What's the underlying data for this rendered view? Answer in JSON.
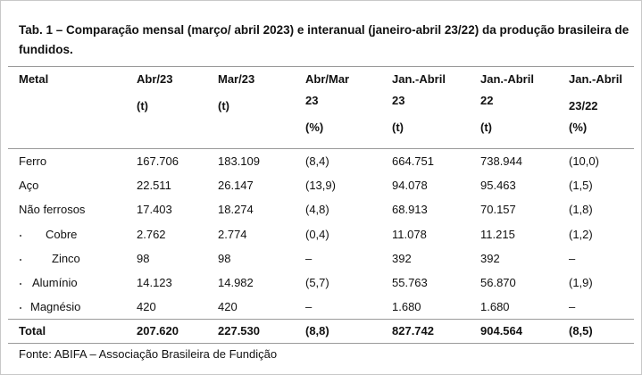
{
  "title": "Tab. 1 – Comparação mensal (março/ abril 2023) e interanual (janeiro-abril 23/22) da produção brasileira de fundidos.",
  "table": {
    "header": [
      [
        "Metal"
      ],
      [
        "Abr/23",
        "(t)"
      ],
      [
        "Mar/23",
        "(t)"
      ],
      [
        "Abr/Mar",
        "23",
        "(%)"
      ],
      [
        "Jan.-Abril",
        "23",
        "(t)"
      ],
      [
        "Jan.-Abril",
        "22",
        "(t)"
      ],
      [
        "Jan.-Abril",
        "23/22",
        "(%)"
      ]
    ],
    "rows": [
      [
        "Ferro",
        "167.706",
        "183.109",
        "(8,4)",
        "664.751",
        "738.944",
        "(10,0)"
      ],
      [
        "Aço",
        "22.511",
        "26.147",
        "(13,9)",
        "94.078",
        "95.463",
        "(1,5)"
      ],
      [
        "Não ferrosos",
        "17.403",
        "18.274",
        "(4,8)",
        "68.913",
        "70.157",
        "(1,8)"
      ],
      [
        "Cobre",
        "2.762",
        "2.774",
        "(0,4)",
        "11.078",
        "11.215",
        "(1,2)"
      ],
      [
        "Zinco",
        "98",
        "98",
        "–",
        "392",
        "392",
        "–"
      ],
      [
        "Alumínio",
        "14.123",
        "14.982",
        "(5,7)",
        "55.763",
        "56.870",
        "(1,9)"
      ],
      [
        "Magnésio",
        "420",
        "420",
        "–",
        "1.680",
        "1.680",
        "–"
      ]
    ],
    "total": [
      "Total",
      "207.620",
      "227.530",
      "(8,8)",
      "827.742",
      "904.564",
      "(8,5)"
    ]
  },
  "source": "Fonte: ABIFA – Associação Brasileira de Fundição"
}
